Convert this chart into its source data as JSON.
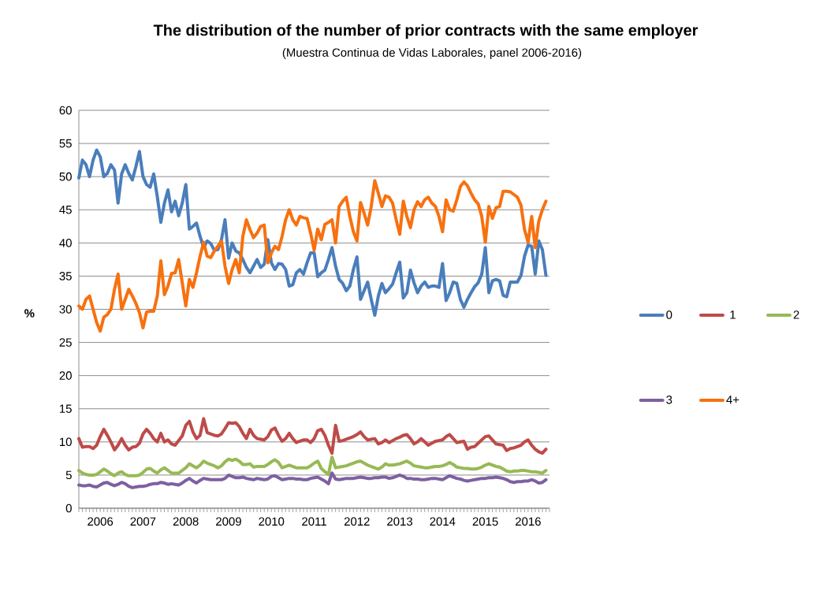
{
  "chart_data": {
    "type": "line",
    "title": "The distribution of the number of prior contracts with the same employer",
    "subtitle": "(Muestra Continua de Vidas Laborales, panel 2006-2016)",
    "ylabel": "%",
    "x": [
      "2006-01",
      "2006-02",
      "2006-03",
      "2006-04",
      "2006-05",
      "2006-06",
      "2006-07",
      "2006-08",
      "2006-09",
      "2006-10",
      "2006-11",
      "2006-12",
      "2007-01",
      "2007-02",
      "2007-03",
      "2007-04",
      "2007-05",
      "2007-06",
      "2007-07",
      "2007-08",
      "2007-09",
      "2007-10",
      "2007-11",
      "2007-12",
      "2008-01",
      "2008-02",
      "2008-03",
      "2008-04",
      "2008-05",
      "2008-06",
      "2008-07",
      "2008-08",
      "2008-09",
      "2008-10",
      "2008-11",
      "2008-12",
      "2009-01",
      "2009-02",
      "2009-03",
      "2009-04",
      "2009-05",
      "2009-06",
      "2009-07",
      "2009-08",
      "2009-09",
      "2009-10",
      "2009-11",
      "2009-12",
      "2010-01",
      "2010-02",
      "2010-03",
      "2010-04",
      "2010-05",
      "2010-06",
      "2010-07",
      "2010-08",
      "2010-09",
      "2010-10",
      "2010-11",
      "2010-12",
      "2011-01",
      "2011-02",
      "2011-03",
      "2011-04",
      "2011-05",
      "2011-06",
      "2011-07",
      "2011-08",
      "2011-09",
      "2011-10",
      "2011-11",
      "2011-12",
      "2012-01",
      "2012-02",
      "2012-03",
      "2012-04",
      "2012-05",
      "2012-06",
      "2012-07",
      "2012-08",
      "2012-09",
      "2012-10",
      "2012-11",
      "2012-12",
      "2013-01",
      "2013-02",
      "2013-03",
      "2013-04",
      "2013-05",
      "2013-06",
      "2013-07",
      "2013-08",
      "2013-09",
      "2013-10",
      "2013-11",
      "2013-12",
      "2014-01",
      "2014-02",
      "2014-03",
      "2014-04",
      "2014-05",
      "2014-06",
      "2014-07",
      "2014-08",
      "2014-09",
      "2014-10",
      "2014-11",
      "2014-12",
      "2015-01",
      "2015-02",
      "2015-03",
      "2015-04",
      "2015-05",
      "2015-06",
      "2015-07",
      "2015-08",
      "2015-09",
      "2015-10",
      "2015-11",
      "2015-12",
      "2016-01",
      "2016-02",
      "2016-03",
      "2016-04",
      "2016-05",
      "2016-06",
      "2016-07",
      "2016-08",
      "2016-09",
      "2016-10",
      "2016-11",
      "2016-12"
    ],
    "series": [
      {
        "name": "0",
        "color": "#4a7ebb",
        "values": [
          49.8,
          52.5,
          51.8,
          50,
          52.5,
          54,
          53,
          50,
          50.5,
          51.8,
          51,
          46,
          50.4,
          51.8,
          50.5,
          49.5,
          51.5,
          53.8,
          50,
          48.8,
          48.4,
          50.4,
          47,
          43.1,
          46,
          48,
          44.7,
          46.3,
          44.1,
          46,
          48.8,
          42.1,
          42.5,
          43,
          41,
          39.3,
          40.3,
          39.9,
          38.9,
          39,
          40.5,
          43.5,
          37.7,
          40,
          38.8,
          38.5,
          37.5,
          36.3,
          35.5,
          36.5,
          37.5,
          36.3,
          36.8,
          40.5,
          37,
          36,
          36.9,
          36.8,
          36,
          33.5,
          33.7,
          35.5,
          36,
          35.3,
          37,
          38.5,
          38.5,
          34.9,
          35.5,
          35.9,
          37.5,
          39.3,
          36.5,
          34.5,
          33.9,
          32.8,
          33.5,
          36,
          37.9,
          31.5,
          32.8,
          34.1,
          31.5,
          29.1,
          32,
          33.9,
          32.5,
          33.1,
          33.8,
          35.5,
          37.1,
          31.7,
          32.5,
          35.9,
          34,
          32.5,
          33.5,
          34.1,
          33.3,
          33.5,
          33.5,
          33.3,
          36.9,
          31.3,
          32.5,
          34.1,
          33.9,
          31.5,
          30.3,
          31.5,
          32.5,
          33.4,
          34,
          35.3,
          39.3,
          32.5,
          34.3,
          34.5,
          34.3,
          32.1,
          31.9,
          34.1,
          34.1,
          34.1,
          35.1,
          38,
          39.7,
          39.5,
          35.3,
          40.3,
          39,
          35.1
        ]
      },
      {
        "name": "1",
        "color": "#be4b48",
        "values": [
          10.5,
          9.2,
          9.3,
          9.3,
          9,
          9.5,
          10.8,
          11.9,
          11,
          10,
          8.8,
          9.5,
          10.5,
          9.5,
          8.8,
          9.2,
          9.3,
          9.8,
          11.2,
          11.9,
          11.3,
          10.5,
          10,
          11.3,
          10,
          10.3,
          9.7,
          9.5,
          10.2,
          10.9,
          12.5,
          13.1,
          11.5,
          10.5,
          11,
          13.5,
          11.4,
          11.2,
          11,
          10.9,
          11.2,
          12,
          12.9,
          12.8,
          12.9,
          12.3,
          11.3,
          10.5,
          11.9,
          11,
          10.5,
          10.4,
          10.3,
          10.8,
          11.8,
          12.1,
          11,
          10.1,
          10.5,
          11.3,
          10.5,
          9.9,
          10.1,
          10.3,
          10.3,
          9.9,
          10.5,
          11.7,
          11.9,
          11,
          9.5,
          8.3,
          12.5,
          10.1,
          10.2,
          10.4,
          10.6,
          10.8,
          11.1,
          11.5,
          10.8,
          10.3,
          10.4,
          10.5,
          9.7,
          9.9,
          10.3,
          9.9,
          10.2,
          10.5,
          10.7,
          11,
          11.1,
          10.5,
          9.7,
          10,
          10.5,
          10,
          9.5,
          9.8,
          10.1,
          10.2,
          10.3,
          10.8,
          11.1,
          10.5,
          9.9,
          10,
          10.1,
          8.9,
          9.2,
          9.3,
          9.8,
          10.3,
          10.8,
          10.9,
          10.3,
          9.7,
          9.6,
          9.5,
          8.7,
          9,
          9.1,
          9.3,
          9.5,
          10,
          10.3,
          9.5,
          8.9,
          8.5,
          8.3,
          8.9
        ]
      },
      {
        "name": "2",
        "color": "#98b954",
        "values": [
          5.7,
          5.3,
          5.1,
          5,
          5,
          5.1,
          5.5,
          5.9,
          5.6,
          5.2,
          4.9,
          5.3,
          5.5,
          5.1,
          4.9,
          4.9,
          4.9,
          5,
          5.4,
          5.9,
          6,
          5.6,
          5.3,
          5.8,
          6.1,
          5.7,
          5.3,
          5.3,
          5.3,
          5.7,
          6.1,
          6.7,
          6.4,
          6.1,
          6.5,
          7.1,
          6.8,
          6.6,
          6.4,
          6.1,
          6.4,
          7,
          7.4,
          7.2,
          7.4,
          7.1,
          6.6,
          6.6,
          6.7,
          6.2,
          6.3,
          6.3,
          6.3,
          6.6,
          7,
          7.3,
          6.9,
          6.1,
          6.3,
          6.5,
          6.3,
          6.1,
          6.1,
          6.1,
          6.1,
          6.4,
          6.8,
          7.1,
          6,
          5.5,
          5.1,
          7.7,
          6.1,
          6.2,
          6.3,
          6.4,
          6.6,
          6.8,
          7,
          7.1,
          6.8,
          6.5,
          6.3,
          6.1,
          5.9,
          6.2,
          6.7,
          6.5,
          6.5,
          6.6,
          6.7,
          6.9,
          7.1,
          6.8,
          6.4,
          6.3,
          6.2,
          6.1,
          6.1,
          6.2,
          6.3,
          6.3,
          6.4,
          6.6,
          6.9,
          6.6,
          6.2,
          6.1,
          6,
          6,
          5.9,
          5.9,
          6,
          6.2,
          6.5,
          6.7,
          6.5,
          6.3,
          6.2,
          5.9,
          5.6,
          5.5,
          5.6,
          5.6,
          5.7,
          5.7,
          5.6,
          5.5,
          5.5,
          5.4,
          5.3,
          5.7
        ]
      },
      {
        "name": "3",
        "color": "#7d60a0",
        "values": [
          3.5,
          3.4,
          3.4,
          3.5,
          3.3,
          3.2,
          3.5,
          3.8,
          3.9,
          3.6,
          3.4,
          3.6,
          3.9,
          3.7,
          3.3,
          3.1,
          3.2,
          3.3,
          3.3,
          3.4,
          3.6,
          3.7,
          3.7,
          3.9,
          3.8,
          3.6,
          3.7,
          3.6,
          3.5,
          3.8,
          4.2,
          4.5,
          4.1,
          3.8,
          4.2,
          4.5,
          4.4,
          4.3,
          4.3,
          4.3,
          4.3,
          4.5,
          5,
          4.8,
          4.6,
          4.6,
          4.7,
          4.5,
          4.4,
          4.3,
          4.5,
          4.4,
          4.3,
          4.4,
          4.8,
          4.9,
          4.6,
          4.3,
          4.4,
          4.5,
          4.5,
          4.4,
          4.4,
          4.3,
          4.3,
          4.5,
          4.6,
          4.7,
          4.4,
          4.1,
          3.7,
          5.3,
          4.4,
          4.3,
          4.4,
          4.5,
          4.5,
          4.5,
          4.6,
          4.7,
          4.6,
          4.5,
          4.5,
          4.6,
          4.6,
          4.7,
          4.7,
          4.5,
          4.6,
          4.8,
          5,
          4.8,
          4.5,
          4.5,
          4.4,
          4.4,
          4.3,
          4.3,
          4.4,
          4.5,
          4.5,
          4.4,
          4.3,
          4.6,
          4.9,
          4.7,
          4.5,
          4.4,
          4.2,
          4.1,
          4.2,
          4.3,
          4.4,
          4.5,
          4.5,
          4.6,
          4.6,
          4.7,
          4.6,
          4.5,
          4.3,
          4,
          3.9,
          4,
          4,
          4.1,
          4.1,
          4.3,
          4.1,
          3.8,
          3.9,
          4.3
        ]
      },
      {
        "name": "4+",
        "color": "#f7710f",
        "values": [
          30.5,
          30,
          31.5,
          32,
          30,
          28,
          26.7,
          28.8,
          29.2,
          30,
          33,
          35.3,
          30,
          31.5,
          33,
          32,
          30.9,
          29.5,
          27.2,
          29.6,
          29.7,
          29.7,
          32,
          37.3,
          32.2,
          33.5,
          35.4,
          35.5,
          37.5,
          34,
          30.5,
          34.5,
          33.3,
          35.5,
          38,
          40.1,
          38,
          37.8,
          38.8,
          39.5,
          40.3,
          36.5,
          33.9,
          36,
          37.5,
          35.5,
          41,
          43.5,
          42,
          40.8,
          41.5,
          42.5,
          42.7,
          37,
          38.5,
          39.5,
          39,
          41,
          43.5,
          45,
          43.5,
          42.7,
          44,
          43.8,
          43.7,
          41.5,
          38.9,
          42.1,
          40.5,
          42.8,
          43.1,
          43.5,
          40,
          45.5,
          46.3,
          46.9,
          44,
          41.7,
          40.3,
          46.1,
          44.5,
          42.7,
          45.5,
          49.4,
          47.5,
          45.5,
          47.1,
          46.9,
          46,
          43.5,
          41.3,
          46.3,
          44,
          42.3,
          45,
          46.2,
          45.5,
          46.5,
          46.9,
          46,
          45.5,
          44,
          41.7,
          46.5,
          45,
          44.8,
          46.5,
          48.5,
          49.2,
          48.6,
          47.5,
          46.5,
          45.9,
          44,
          40.1,
          45.5,
          43.7,
          45.3,
          45.5,
          47.8,
          47.8,
          47.7,
          47.3,
          46.9,
          45.7,
          42,
          40.1,
          44,
          39.3,
          43.3,
          45,
          46.3
        ]
      }
    ],
    "xlim": [
      "2006-01",
      "2017-01"
    ],
    "xticks": [
      {
        "value": "2006-01",
        "label": null
      },
      {
        "value": "2006-02",
        "label": null
      },
      {
        "value": "2006-03",
        "label": null
      },
      {
        "value": "2006-04",
        "label": null
      },
      {
        "value": "2006-05",
        "label": null
      },
      {
        "value": "2006-06",
        "label": null
      },
      {
        "value": "2006-07",
        "label": "2006"
      },
      {
        "value": "2006-08",
        "label": null
      },
      {
        "value": "2006-09",
        "label": null
      },
      {
        "value": "2006-10",
        "label": null
      },
      {
        "value": "2006-11",
        "label": null
      },
      {
        "value": "2006-12",
        "label": null
      },
      {
        "value": "2007-01",
        "label": null
      },
      {
        "value": "2007-02",
        "label": null
      },
      {
        "value": "2007-03",
        "label": null
      },
      {
        "value": "2007-04",
        "label": null
      },
      {
        "value": "2007-05",
        "label": null
      },
      {
        "value": "2007-06",
        "label": null
      },
      {
        "value": "2007-07",
        "label": "2007"
      },
      {
        "value": "2007-08",
        "label": null
      },
      {
        "value": "2007-09",
        "label": null
      },
      {
        "value": "2007-10",
        "label": null
      },
      {
        "value": "2007-11",
        "label": null
      },
      {
        "value": "2007-12",
        "label": null
      },
      {
        "value": "2008-01",
        "label": null
      },
      {
        "value": "2008-02",
        "label": null
      },
      {
        "value": "2008-03",
        "label": null
      },
      {
        "value": "2008-04",
        "label": null
      },
      {
        "value": "2008-05",
        "label": null
      },
      {
        "value": "2008-06",
        "label": null
      },
      {
        "value": "2008-07",
        "label": "2008"
      },
      {
        "value": "2008-08",
        "label": null
      },
      {
        "value": "2008-09",
        "label": null
      },
      {
        "value": "2008-10",
        "label": null
      },
      {
        "value": "2008-11",
        "label": null
      },
      {
        "value": "2008-12",
        "label": null
      },
      {
        "value": "2009-01",
        "label": null
      },
      {
        "value": "2009-02",
        "label": null
      },
      {
        "value": "2009-03",
        "label": null
      },
      {
        "value": "2009-04",
        "label": null
      },
      {
        "value": "2009-05",
        "label": null
      },
      {
        "value": "2009-06",
        "label": null
      },
      {
        "value": "2009-07",
        "label": "2009"
      },
      {
        "value": "2009-08",
        "label": null
      },
      {
        "value": "2009-09",
        "label": null
      },
      {
        "value": "2009-10",
        "label": null
      },
      {
        "value": "2009-11",
        "label": null
      },
      {
        "value": "2009-12",
        "label": null
      },
      {
        "value": "2010-01",
        "label": null
      },
      {
        "value": "2010-02",
        "label": null
      },
      {
        "value": "2010-03",
        "label": null
      },
      {
        "value": "2010-04",
        "label": null
      },
      {
        "value": "2010-05",
        "label": null
      },
      {
        "value": "2010-06",
        "label": null
      },
      {
        "value": "2010-07",
        "label": "2010"
      },
      {
        "value": "2010-08",
        "label": null
      },
      {
        "value": "2010-09",
        "label": null
      },
      {
        "value": "2010-10",
        "label": null
      },
      {
        "value": "2010-11",
        "label": null
      },
      {
        "value": "2010-12",
        "label": null
      },
      {
        "value": "2011-01",
        "label": null
      },
      {
        "value": "2011-02",
        "label": null
      },
      {
        "value": "2011-03",
        "label": null
      },
      {
        "value": "2011-04",
        "label": null
      },
      {
        "value": "2011-05",
        "label": null
      },
      {
        "value": "2011-06",
        "label": null
      },
      {
        "value": "2011-07",
        "label": "2011"
      },
      {
        "value": "2011-08",
        "label": null
      },
      {
        "value": "2011-09",
        "label": null
      },
      {
        "value": "2011-10",
        "label": null
      },
      {
        "value": "2011-11",
        "label": null
      },
      {
        "value": "2011-12",
        "label": null
      },
      {
        "value": "2012-01",
        "label": null
      },
      {
        "value": "2012-02",
        "label": null
      },
      {
        "value": "2012-03",
        "label": null
      },
      {
        "value": "2012-04",
        "label": null
      },
      {
        "value": "2012-05",
        "label": null
      },
      {
        "value": "2012-06",
        "label": null
      },
      {
        "value": "2012-07",
        "label": "2012"
      },
      {
        "value": "2012-08",
        "label": null
      },
      {
        "value": "2012-09",
        "label": null
      },
      {
        "value": "2012-10",
        "label": null
      },
      {
        "value": "2012-11",
        "label": null
      },
      {
        "value": "2012-12",
        "label": null
      },
      {
        "value": "2013-01",
        "label": null
      },
      {
        "value": "2013-02",
        "label": null
      },
      {
        "value": "2013-03",
        "label": null
      },
      {
        "value": "2013-04",
        "label": null
      },
      {
        "value": "2013-05",
        "label": null
      },
      {
        "value": "2013-06",
        "label": null
      },
      {
        "value": "2013-07",
        "label": "2013"
      },
      {
        "value": "2013-08",
        "label": null
      },
      {
        "value": "2013-09",
        "label": null
      },
      {
        "value": "2013-10",
        "label": null
      },
      {
        "value": "2013-11",
        "label": null
      },
      {
        "value": "2013-12",
        "label": null
      },
      {
        "value": "2014-01",
        "label": null
      },
      {
        "value": "2014-02",
        "label": null
      },
      {
        "value": "2014-03",
        "label": null
      },
      {
        "value": "2014-04",
        "label": null
      },
      {
        "value": "2014-05",
        "label": null
      },
      {
        "value": "2014-06",
        "label": null
      },
      {
        "value": "2014-07",
        "label": "2014"
      },
      {
        "value": "2014-08",
        "label": null
      },
      {
        "value": "2014-09",
        "label": null
      },
      {
        "value": "2014-10",
        "label": null
      },
      {
        "value": "2014-11",
        "label": null
      },
      {
        "value": "2014-12",
        "label": null
      },
      {
        "value": "2015-01",
        "label": null
      },
      {
        "value": "2015-02",
        "label": null
      },
      {
        "value": "2015-03",
        "label": null
      },
      {
        "value": "2015-04",
        "label": null
      },
      {
        "value": "2015-05",
        "label": null
      },
      {
        "value": "2015-06",
        "label": null
      },
      {
        "value": "2015-07",
        "label": "2015"
      },
      {
        "value": "2015-08",
        "label": null
      },
      {
        "value": "2015-09",
        "label": null
      },
      {
        "value": "2015-10",
        "label": null
      },
      {
        "value": "2015-11",
        "label": null
      },
      {
        "value": "2015-12",
        "label": null
      },
      {
        "value": "2016-01",
        "label": null
      },
      {
        "value": "2016-02",
        "label": null
      },
      {
        "value": "2016-03",
        "label": null
      },
      {
        "value": "2016-04",
        "label": null
      },
      {
        "value": "2016-05",
        "label": null
      },
      {
        "value": "2016-06",
        "label": null
      },
      {
        "value": "2016-07",
        "label": "2016"
      },
      {
        "value": "2016-08",
        "label": null
      },
      {
        "value": "2016-09",
        "label": null
      },
      {
        "value": "2016-10",
        "label": null
      },
      {
        "value": "2016-11",
        "label": null
      },
      {
        "value": "2016-12",
        "label": null
      },
      {
        "value": "2017-01",
        "label": null
      }
    ],
    "ylim": [
      0,
      60
    ],
    "yticks": [
      0,
      5,
      10,
      15,
      20,
      25,
      30,
      35,
      40,
      45,
      50,
      55,
      60
    ],
    "grid": "y",
    "legend": "right",
    "line_style": "solid"
  }
}
